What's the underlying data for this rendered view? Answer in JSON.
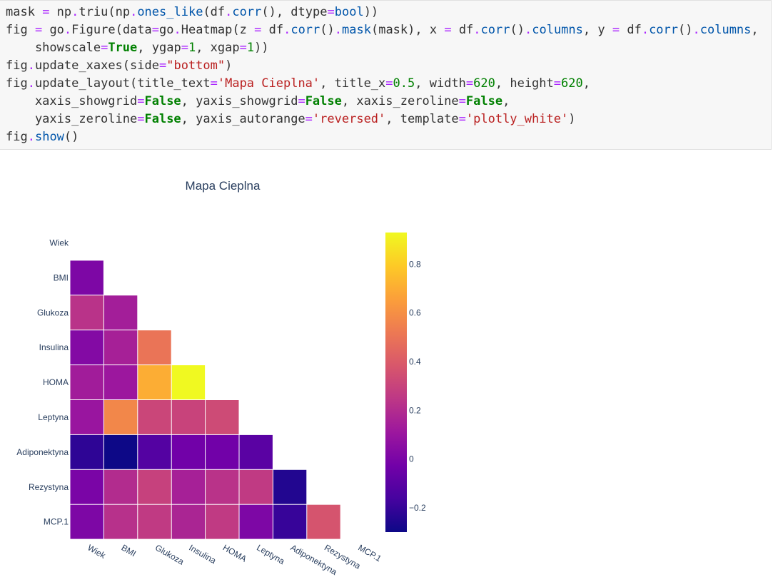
{
  "code": {
    "lines": [
      "mask = np.triu(np.ones_like(df.corr(), dtype=bool))",
      "fig = go.Figure(data=go.Heatmap(z = df.corr().mask(mask), x = df.corr().columns, y = df.corr().columns,",
      "    showscale=True, ygap=1, xgap=1))",
      "fig.update_xaxes(side=\"bottom\")",
      "fig.update_layout(title_text='Mapa Cieplna', title_x=0.5, width=620, height=620,",
      "    xaxis_showgrid=False, yaxis_showgrid=False, xaxis_zeroline=False,",
      "    yaxis_zeroline=False, yaxis_autorange='reversed', template='plotly_white')",
      "fig.show()"
    ]
  },
  "chart_data": {
    "type": "heatmap",
    "title": "Mapa Cieplna",
    "x": [
      "Wiek",
      "BMI",
      "Glukoza",
      "Insulina",
      "HOMA",
      "Leptyna",
      "Adiponektyna",
      "Rezystyna",
      "MCP.1"
    ],
    "y": [
      "Wiek",
      "BMI",
      "Glukoza",
      "Insulina",
      "HOMA",
      "Leptyna",
      "Adiponektyna",
      "Rezystyna",
      "MCP.1"
    ],
    "z": [
      [
        null,
        null,
        null,
        null,
        null,
        null,
        null,
        null,
        null
      ],
      [
        0.01,
        null,
        null,
        null,
        null,
        null,
        null,
        null,
        null
      ],
      [
        0.23,
        0.14,
        null,
        null,
        null,
        null,
        null,
        null,
        null
      ],
      [
        0.03,
        0.15,
        0.5,
        null,
        null,
        null,
        null,
        null,
        null
      ],
      [
        0.13,
        0.11,
        0.7,
        0.93,
        null,
        null,
        null,
        null,
        null
      ],
      [
        0.1,
        0.57,
        0.31,
        0.3,
        0.33,
        null,
        null,
        null,
        null
      ],
      [
        -0.22,
        -0.3,
        -0.12,
        -0.03,
        -0.03,
        -0.1,
        null,
        null,
        null
      ],
      [
        0.0,
        0.2,
        0.29,
        0.15,
        0.23,
        0.26,
        -0.25,
        null,
        null
      ],
      [
        0.01,
        0.22,
        0.26,
        0.17,
        0.26,
        0.01,
        -0.2,
        0.37,
        null
      ]
    ],
    "zrange": [
      -0.3,
      0.93
    ],
    "colorbar_ticks": [
      -0.2,
      0,
      0.2,
      0.4,
      0.6,
      0.8
    ],
    "colorbar_tick_labels": [
      "−0.2",
      "0",
      "0.2",
      "0.4",
      "0.6",
      "0.8"
    ],
    "colorscale": [
      "#0d0887",
      "#46039f",
      "#7201a8",
      "#9c179e",
      "#bd3786",
      "#d8576b",
      "#ed7953",
      "#fb9f3a",
      "#fdca26",
      "#f0f921"
    ],
    "yaxis_reversed": true,
    "showgrid": false
  }
}
